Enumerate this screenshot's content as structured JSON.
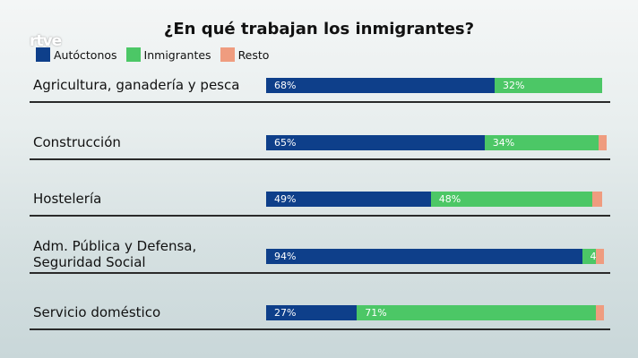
{
  "logo": "rtve",
  "chart_data": {
    "type": "bar",
    "orientation": "horizontal",
    "stacked": true,
    "title": "¿En qué trabajan los inmigrantes?",
    "categories": [
      "Agricultura, ganadería y pesca",
      "Construcción",
      "Hostelería",
      "Adm. Pública y Defensa, Seguridad Social",
      "Servicio doméstico"
    ],
    "series": [
      {
        "name": "Autóctonos",
        "color": "#0e3f8a",
        "values": [
          68,
          65,
          49,
          94,
          27
        ],
        "labels": [
          "68%",
          "65%",
          "49%",
          "94%",
          "27%"
        ]
      },
      {
        "name": "Inmigrantes",
        "color": "#4cc766",
        "values": [
          32,
          34,
          48,
          4,
          71
        ],
        "labels": [
          "32%",
          "34%",
          "48%",
          "4%",
          "71%"
        ]
      },
      {
        "name": "Resto",
        "color": "#ef9c7f",
        "values": [
          0,
          1,
          3,
          2,
          2
        ],
        "labels": [
          "",
          "",
          "",
          "",
          ""
        ]
      }
    ],
    "xlim": [
      0,
      100
    ],
    "legend": "top-left",
    "grid": false
  }
}
